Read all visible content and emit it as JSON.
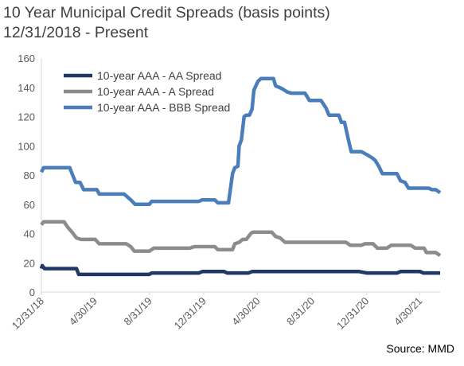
{
  "page": {
    "title_line1": "10 Year Municipal Credit Spreads (basis points)",
    "title_line2": "12/31/2018 - Present",
    "source": "Source: MMD"
  },
  "chart_data": {
    "type": "line",
    "title": "10 Year Municipal Credit Spreads (basis points)",
    "subtitle": "12/31/2018 - Present",
    "xlabel": "",
    "ylabel": "",
    "ylim": [
      0,
      160
    ],
    "yticks": [
      0,
      20,
      40,
      60,
      80,
      100,
      120,
      140,
      160
    ],
    "xlim": [
      "2018-12-31",
      "2021-06-15"
    ],
    "xtick_labels": [
      "12/31/18",
      "4/30/19",
      "8/31/19",
      "12/31/19",
      "4/30/20",
      "8/31/20",
      "12/31/20",
      "4/30/21"
    ],
    "xtick_dates": [
      "2018-12-31",
      "2019-04-30",
      "2019-08-31",
      "2019-12-31",
      "2020-04-30",
      "2020-08-31",
      "2020-12-31",
      "2021-04-30"
    ],
    "grid": false,
    "legend": "top-left",
    "series": [
      {
        "name": "10-year AAA - AA Spread",
        "color": "#1f3864",
        "points": [
          [
            "2018-12-31",
            16
          ],
          [
            "2019-01-02",
            18
          ],
          [
            "2019-01-07",
            16
          ],
          [
            "2019-02-15",
            16
          ],
          [
            "2019-03-20",
            16
          ],
          [
            "2019-03-25",
            12
          ],
          [
            "2019-05-15",
            12
          ],
          [
            "2019-08-31",
            12
          ],
          [
            "2019-09-05",
            13
          ],
          [
            "2019-12-20",
            13
          ],
          [
            "2019-12-28",
            14
          ],
          [
            "2020-02-15",
            14
          ],
          [
            "2020-02-22",
            13
          ],
          [
            "2020-04-10",
            13
          ],
          [
            "2020-04-18",
            14
          ],
          [
            "2020-12-15",
            14
          ],
          [
            "2021-01-01",
            13
          ],
          [
            "2021-03-10",
            13
          ],
          [
            "2021-03-18",
            14
          ],
          [
            "2021-05-01",
            14
          ],
          [
            "2021-05-08",
            13
          ],
          [
            "2021-06-15",
            13
          ]
        ]
      },
      {
        "name": "10-year AAA - A Spread",
        "color": "#8c8c8c",
        "points": [
          [
            "2018-12-31",
            46
          ],
          [
            "2019-01-05",
            48
          ],
          [
            "2019-02-20",
            48
          ],
          [
            "2019-03-01",
            44
          ],
          [
            "2019-03-10",
            41
          ],
          [
            "2019-03-20",
            37
          ],
          [
            "2019-03-30",
            36
          ],
          [
            "2019-05-01",
            36
          ],
          [
            "2019-05-10",
            33
          ],
          [
            "2019-07-10",
            33
          ],
          [
            "2019-07-20",
            31
          ],
          [
            "2019-07-28",
            28
          ],
          [
            "2019-08-31",
            28
          ],
          [
            "2019-09-10",
            30
          ],
          [
            "2019-11-30",
            30
          ],
          [
            "2019-12-10",
            31
          ],
          [
            "2020-01-25",
            31
          ],
          [
            "2020-02-01",
            29
          ],
          [
            "2020-03-05",
            29
          ],
          [
            "2020-03-10",
            33
          ],
          [
            "2020-03-20",
            34
          ],
          [
            "2020-03-28",
            36
          ],
          [
            "2020-04-05",
            36
          ],
          [
            "2020-04-15",
            40
          ],
          [
            "2020-04-20",
            41
          ],
          [
            "2020-06-01",
            41
          ],
          [
            "2020-06-10",
            38
          ],
          [
            "2020-06-20",
            37
          ],
          [
            "2020-07-01",
            34
          ],
          [
            "2020-11-15",
            34
          ],
          [
            "2020-11-25",
            32
          ],
          [
            "2020-12-20",
            32
          ],
          [
            "2020-12-28",
            33
          ],
          [
            "2021-01-15",
            33
          ],
          [
            "2021-01-25",
            30
          ],
          [
            "2021-02-15",
            30
          ],
          [
            "2021-02-25",
            32
          ],
          [
            "2021-04-10",
            32
          ],
          [
            "2021-04-20",
            30
          ],
          [
            "2021-05-10",
            30
          ],
          [
            "2021-05-15",
            27
          ],
          [
            "2021-06-05",
            27
          ],
          [
            "2021-06-15",
            25
          ]
        ]
      },
      {
        "name": "10-year AAA - BBB Spread",
        "color": "#4a7ebb",
        "points": [
          [
            "2018-12-31",
            82
          ],
          [
            "2019-01-05",
            85
          ],
          [
            "2019-03-05",
            85
          ],
          [
            "2019-03-10",
            81
          ],
          [
            "2019-03-18",
            75
          ],
          [
            "2019-03-28",
            75
          ],
          [
            "2019-04-05",
            70
          ],
          [
            "2019-05-05",
            70
          ],
          [
            "2019-05-10",
            67
          ],
          [
            "2019-07-05",
            67
          ],
          [
            "2019-07-20",
            63
          ],
          [
            "2019-07-30",
            60
          ],
          [
            "2019-08-31",
            60
          ],
          [
            "2019-09-05",
            62
          ],
          [
            "2019-12-20",
            62
          ],
          [
            "2019-12-28",
            63
          ],
          [
            "2020-01-25",
            63
          ],
          [
            "2020-02-01",
            61
          ],
          [
            "2020-02-25",
            61
          ],
          [
            "2020-03-05",
            81
          ],
          [
            "2020-03-10",
            85
          ],
          [
            "2020-03-17",
            86
          ],
          [
            "2020-03-20",
            100
          ],
          [
            "2020-03-25",
            104
          ],
          [
            "2020-03-31",
            120
          ],
          [
            "2020-04-05",
            121
          ],
          [
            "2020-04-12",
            121
          ],
          [
            "2020-04-18",
            125
          ],
          [
            "2020-04-22",
            138
          ],
          [
            "2020-05-01",
            144
          ],
          [
            "2020-05-08",
            146
          ],
          [
            "2020-06-05",
            146
          ],
          [
            "2020-06-10",
            141
          ],
          [
            "2020-06-18",
            140
          ],
          [
            "2020-06-25",
            139
          ],
          [
            "2020-07-05",
            137
          ],
          [
            "2020-07-15",
            136
          ],
          [
            "2020-08-15",
            136
          ],
          [
            "2020-08-25",
            131
          ],
          [
            "2020-09-20",
            131
          ],
          [
            "2020-10-01",
            126
          ],
          [
            "2020-10-08",
            121
          ],
          [
            "2020-10-30",
            121
          ],
          [
            "2020-11-05",
            116
          ],
          [
            "2020-11-12",
            116
          ],
          [
            "2020-11-20",
            105
          ],
          [
            "2020-11-27",
            96
          ],
          [
            "2020-12-20",
            96
          ],
          [
            "2021-01-01",
            94
          ],
          [
            "2021-01-12",
            92
          ],
          [
            "2021-01-20",
            90
          ],
          [
            "2021-01-28",
            86
          ],
          [
            "2021-02-05",
            81
          ],
          [
            "2021-03-10",
            81
          ],
          [
            "2021-03-18",
            76
          ],
          [
            "2021-03-28",
            75
          ],
          [
            "2021-04-05",
            71
          ],
          [
            "2021-05-20",
            71
          ],
          [
            "2021-05-28",
            70
          ],
          [
            "2021-06-05",
            70
          ],
          [
            "2021-06-15",
            68
          ]
        ]
      }
    ]
  }
}
